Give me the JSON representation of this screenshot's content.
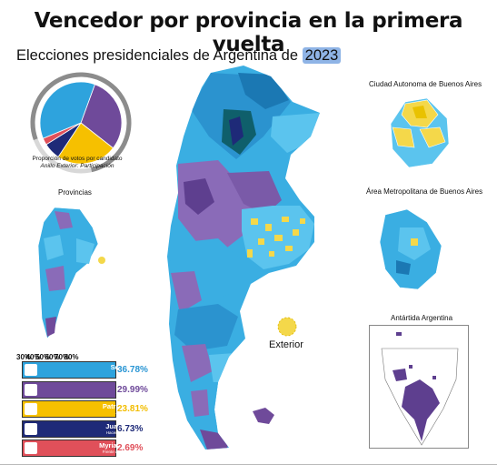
{
  "title": "Vencedor por provincia en la primera vuelta",
  "subtitle": {
    "text": "Elecciones presidenciales de Argentina de",
    "year": "2023"
  },
  "pie": {
    "caption": "Proporción de votos por candidato",
    "caption_sub": "Anillo Exterior: Participación",
    "participation_fraction": 0.77
  },
  "labels": {
    "provincias": "Provincias",
    "caba": "Ciudad Autonoma de Buenos Aires",
    "amba": "Área Metropolitana de Buenos Aires",
    "antartida": "Antártida Argentina",
    "exterior": "Exterior"
  },
  "scale_ticks": [
    "30%",
    "40%",
    "50%",
    "60%",
    "70%",
    "80%"
  ],
  "candidates": [
    {
      "name": "Sergio Massa",
      "party": "Union por la Patria",
      "pct": "36.78%",
      "value": 36.78,
      "color": "#2ea3dd",
      "pct_color": "#2a96d4"
    },
    {
      "name": "Javier Milei",
      "party": "La Libertad Avanza",
      "pct": "29.99%",
      "value": 29.99,
      "color": "#6f4a9a",
      "pct_color": "#6f4a9a"
    },
    {
      "name": "Patricia Bullrich",
      "party": "Juntos por el Cambio",
      "pct": "23.81%",
      "value": 23.81,
      "color": "#f6c000",
      "pct_color": "#f2bd00"
    },
    {
      "name": "Juan Schiaretti",
      "party": "Hacemos por nuestro País",
      "pct": "6.73%",
      "value": 6.73,
      "color": "#1e2a78",
      "pct_color": "#1e2a78"
    },
    {
      "name": "Myriam Bregman",
      "party": "Frente de Izquierda - Unidad",
      "pct": "2.69%",
      "value": 2.69,
      "color": "#e0505a",
      "pct_color": "#e0505a"
    }
  ],
  "colors": {
    "massa_light": "#5bc4ee",
    "massa": "#2ea3dd",
    "massa_dark": "#1b78b3",
    "schiaretti_dark": "#0f5f6b",
    "milei": "#8a6bb8",
    "milei_dark": "#5e3f8f",
    "bullrich": "#f4d84a"
  }
}
